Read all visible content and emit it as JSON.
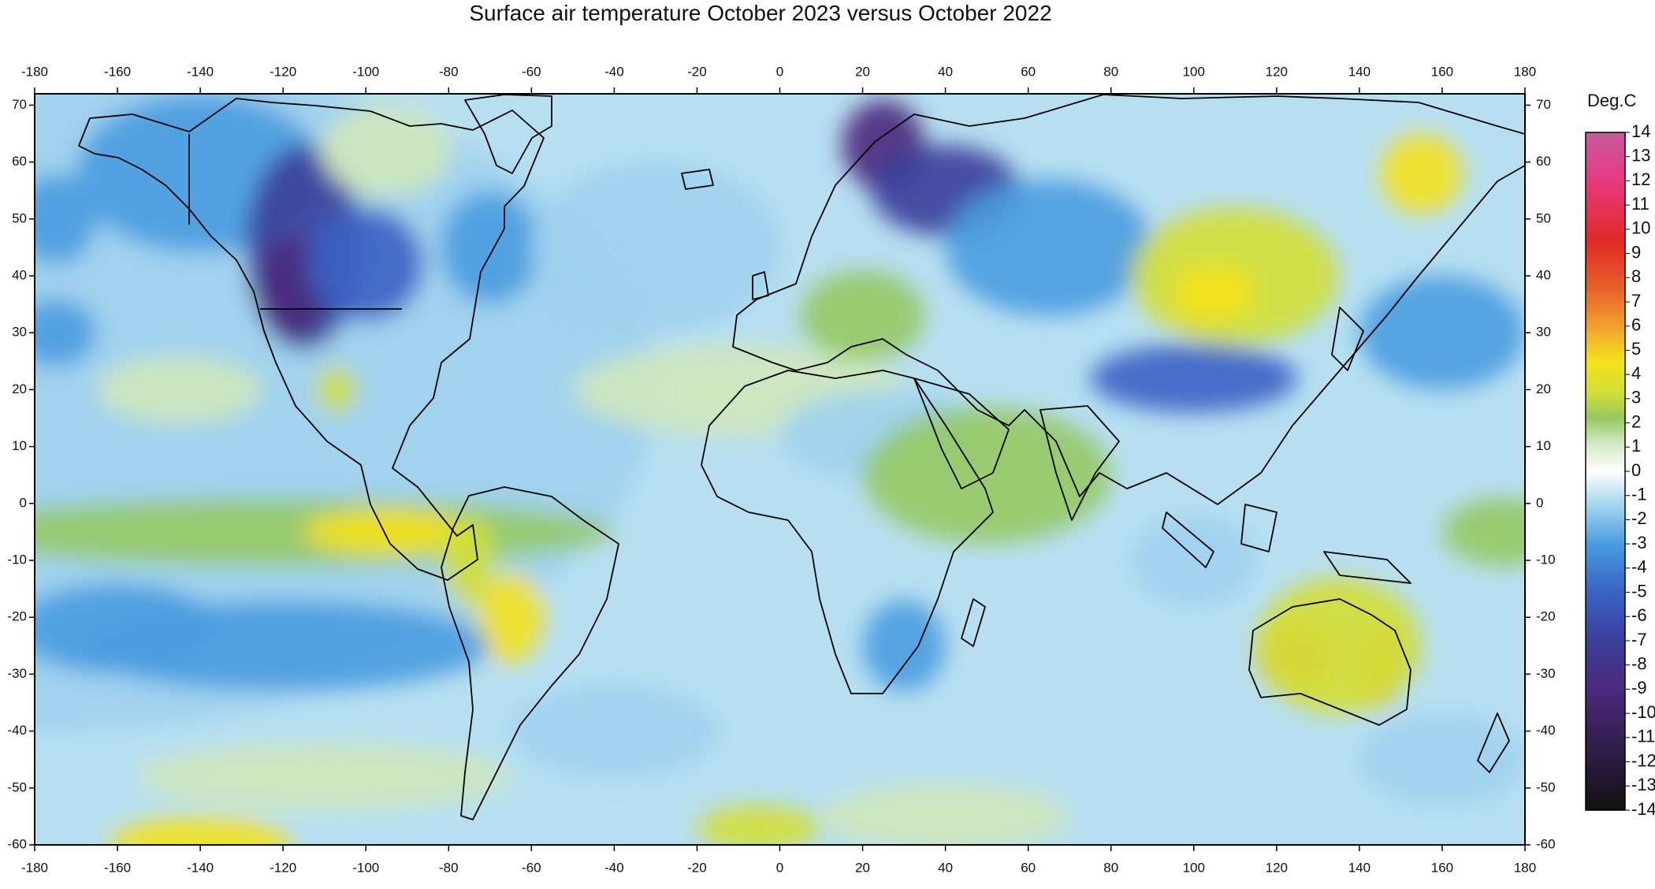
{
  "chart_data": {
    "type": "heatmap",
    "title": "Surface air temperature October 2023 versus October 2022",
    "xlabel": "",
    "ylabel": "",
    "xlim": [
      -180,
      180
    ],
    "ylim": [
      -60,
      72
    ],
    "x_ticks": [
      -180,
      -160,
      -140,
      -120,
      -100,
      -80,
      -60,
      -40,
      -20,
      0,
      20,
      40,
      60,
      80,
      100,
      120,
      140,
      160,
      180
    ],
    "y_ticks": [
      70,
      60,
      50,
      40,
      30,
      20,
      10,
      0,
      -10,
      -20,
      -30,
      -40,
      -50,
      -60
    ],
    "grid": false,
    "colorbar": {
      "unit": "Deg.C",
      "min": -14,
      "max": 14,
      "ticks": [
        14,
        13,
        12,
        11,
        10,
        9,
        8,
        7,
        6,
        5,
        4,
        3,
        2,
        1,
        0,
        -1,
        -2,
        -3,
        -4,
        -5,
        -6,
        -7,
        -8,
        -9,
        -10,
        -11,
        -12,
        -13,
        -14
      ],
      "stops": [
        {
          "v": -14,
          "c": "#111111"
        },
        {
          "v": -12,
          "c": "#2a1a40"
        },
        {
          "v": -9,
          "c": "#4a2a7c"
        },
        {
          "v": -7,
          "c": "#3a3f9a"
        },
        {
          "v": -5,
          "c": "#3a62c4"
        },
        {
          "v": -3,
          "c": "#4a9ce0"
        },
        {
          "v": -1.5,
          "c": "#9ed2ee"
        },
        {
          "v": 0,
          "c": "#ffffff"
        },
        {
          "v": 1.2,
          "c": "#cfe8bd"
        },
        {
          "v": 2.2,
          "c": "#96c964"
        },
        {
          "v": 3.3,
          "c": "#d3df35"
        },
        {
          "v": 4.5,
          "c": "#f5e21c"
        },
        {
          "v": 6,
          "c": "#f0a030"
        },
        {
          "v": 7.5,
          "c": "#e8632b"
        },
        {
          "v": 9.5,
          "c": "#e02a24"
        },
        {
          "v": 12,
          "c": "#e7397f"
        },
        {
          "v": 14,
          "c": "#c85a9e"
        }
      ]
    },
    "anomaly_regions": [
      {
        "lon": -180,
        "lat": 20,
        "rlon": 150,
        "rlat": 60,
        "value": -0.8
      },
      {
        "lon": -140,
        "lat": 58,
        "rlon": 30,
        "rlat": 14,
        "value": -2.8
      },
      {
        "lon": -115,
        "lat": 45,
        "rlon": 14,
        "rlat": 18,
        "value": -7
      },
      {
        "lon": -118,
        "lat": 38,
        "rlon": 9,
        "rlat": 9,
        "value": -8.5
      },
      {
        "lon": -100,
        "lat": 42,
        "rlon": 14,
        "rlat": 10,
        "value": -4
      },
      {
        "lon": -95,
        "lat": 62,
        "rlon": 16,
        "rlat": 8,
        "value": 1
      },
      {
        "lon": -70,
        "lat": 45,
        "rlon": 12,
        "rlat": 10,
        "value": -2.5
      },
      {
        "lon": -107,
        "lat": 20,
        "rlon": 5,
        "rlat": 4,
        "value": 3.5
      },
      {
        "lon": -145,
        "lat": 20,
        "rlon": 20,
        "rlat": 6,
        "value": 1.5
      },
      {
        "lon": -175,
        "lat": 50,
        "rlon": 10,
        "rlat": 8,
        "value": -2.5
      },
      {
        "lon": -175,
        "lat": 30,
        "rlon": 10,
        "rlat": 6,
        "value": -2.5
      },
      {
        "lon": -120,
        "lat": -5,
        "rlon": 80,
        "rlat": 6,
        "value": 2
      },
      {
        "lon": -95,
        "lat": -5,
        "rlon": 20,
        "rlat": 4,
        "value": 4
      },
      {
        "lon": -65,
        "lat": -20,
        "rlon": 8,
        "rlat": 8,
        "value": 4
      },
      {
        "lon": -75,
        "lat": -10,
        "rlon": 6,
        "rlat": 8,
        "value": 3
      },
      {
        "lon": -120,
        "lat": -25,
        "rlon": 50,
        "rlat": 8,
        "value": -2.5
      },
      {
        "lon": -160,
        "lat": -22,
        "rlon": 25,
        "rlat": 8,
        "value": -3
      },
      {
        "lon": -110,
        "lat": -48,
        "rlon": 45,
        "rlat": 6,
        "value": 1.2
      },
      {
        "lon": -140,
        "lat": -60,
        "rlon": 22,
        "rlat": 5,
        "value": 4
      },
      {
        "lon": -40,
        "lat": -40,
        "rlon": 25,
        "rlat": 8,
        "value": -2
      },
      {
        "lon": -5,
        "lat": -57,
        "rlon": 15,
        "rlat": 4,
        "value": 3
      },
      {
        "lon": -10,
        "lat": 20,
        "rlon": 40,
        "rlat": 8,
        "value": 1.5
      },
      {
        "lon": -30,
        "lat": 45,
        "rlon": 30,
        "rlat": 15,
        "value": -2
      },
      {
        "lon": 25,
        "lat": 63,
        "rlon": 10,
        "rlat": 8,
        "value": -8
      },
      {
        "lon": 40,
        "lat": 55,
        "rlon": 18,
        "rlat": 8,
        "value": -7
      },
      {
        "lon": 65,
        "lat": 45,
        "rlon": 25,
        "rlat": 12,
        "value": -3
      },
      {
        "lon": 20,
        "lat": 33,
        "rlon": 15,
        "rlat": 8,
        "value": 2
      },
      {
        "lon": 25,
        "lat": 12,
        "rlon": 25,
        "rlat": 8,
        "value": -2
      },
      {
        "lon": 50,
        "lat": 5,
        "rlon": 30,
        "rlat": 12,
        "value": 2
      },
      {
        "lon": 30,
        "lat": -25,
        "rlon": 10,
        "rlat": 8,
        "value": -3
      },
      {
        "lon": 110,
        "lat": 40,
        "rlon": 25,
        "rlat": 12,
        "value": 3.5
      },
      {
        "lon": 105,
        "lat": 37,
        "rlon": 10,
        "rlat": 5,
        "value": 5
      },
      {
        "lon": 155,
        "lat": 58,
        "rlon": 10,
        "rlat": 7,
        "value": 4.5
      },
      {
        "lon": 100,
        "lat": 22,
        "rlon": 25,
        "rlat": 6,
        "value": -5
      },
      {
        "lon": 160,
        "lat": 30,
        "rlon": 20,
        "rlat": 10,
        "value": -3
      },
      {
        "lon": 100,
        "lat": -10,
        "rlon": 15,
        "rlat": 8,
        "value": -2
      },
      {
        "lon": 125,
        "lat": -27,
        "rlon": 10,
        "rlat": 6,
        "value": 6
      },
      {
        "lon": 145,
        "lat": -28,
        "rlon": 5,
        "rlat": 8,
        "value": 6
      },
      {
        "lon": 135,
        "lat": -25,
        "rlon": 20,
        "rlat": 12,
        "value": 3
      },
      {
        "lon": 175,
        "lat": -5,
        "rlon": 15,
        "rlat": 6,
        "value": 2
      },
      {
        "lon": 160,
        "lat": -45,
        "rlon": 20,
        "rlat": 8,
        "value": -2
      },
      {
        "lon": 40,
        "lat": -55,
        "rlon": 30,
        "rlat": 6,
        "value": 1.5
      }
    ]
  }
}
